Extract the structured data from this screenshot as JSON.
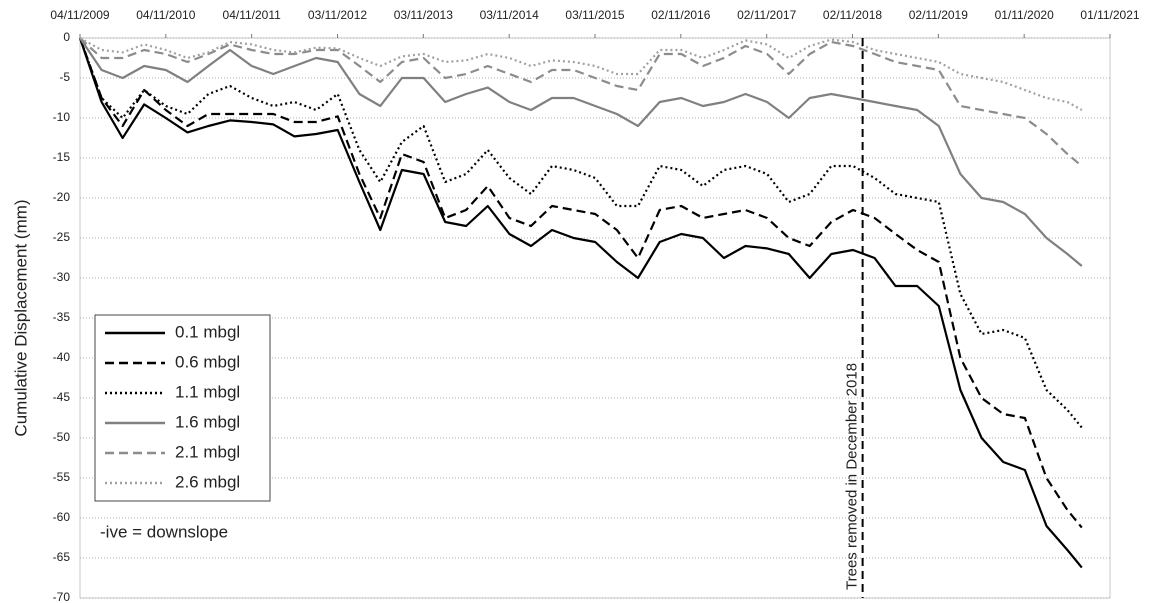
{
  "chart_data": {
    "type": "line",
    "y_label": "Cumulative Displacement (mm)",
    "x": [
      "2009-11-04",
      "2010-02-04",
      "2010-05-04",
      "2010-08-04",
      "2010-11-04",
      "2011-02-04",
      "2011-05-04",
      "2011-08-04",
      "2011-11-04",
      "2012-02-04",
      "2012-05-04",
      "2012-08-04",
      "2012-11-04",
      "2013-02-04",
      "2013-05-04",
      "2013-08-04",
      "2013-11-04",
      "2014-02-04",
      "2014-05-04",
      "2014-08-04",
      "2014-11-04",
      "2015-02-04",
      "2015-05-04",
      "2015-08-04",
      "2015-11-04",
      "2016-02-04",
      "2016-05-04",
      "2016-08-04",
      "2016-11-04",
      "2017-02-04",
      "2017-05-04",
      "2017-08-04",
      "2017-11-04",
      "2018-02-04",
      "2018-05-04",
      "2018-08-04",
      "2018-11-04",
      "2019-02-04",
      "2019-05-04",
      "2019-08-04",
      "2019-11-04",
      "2020-02-04",
      "2020-05-04",
      "2020-08-04",
      "2020-11-04",
      "2021-02-04",
      "2021-05-04",
      "2021-07-04"
    ],
    "series": [
      {
        "name": "0.1 mbgl",
        "color": "#000000",
        "dash": "solid",
        "values": [
          0,
          -8,
          -12.5,
          -8.3,
          -10,
          -11.8,
          -11,
          -10.3,
          -10.5,
          -10.8,
          -12.3,
          -12,
          -11.5,
          -18,
          -24,
          -16.5,
          -17,
          -23,
          -23.5,
          -21,
          -24.5,
          -26,
          -24,
          -25,
          -25.5,
          -28,
          -30,
          -25.5,
          -24.5,
          -25,
          -27.5,
          -26,
          -26.3,
          -27,
          -30,
          -27,
          -26.5,
          -27.5,
          -31,
          -31,
          -33.5,
          -44,
          -50,
          -53,
          -54,
          -61,
          -64,
          -66.2
        ]
      },
      {
        "name": "0.6 mbgl",
        "color": "#000000",
        "dash": "dashed",
        "values": [
          0,
          -7.5,
          -11,
          -6.5,
          -9,
          -11,
          -9.5,
          -9.5,
          -9.5,
          -9.5,
          -10.5,
          -10.5,
          -9.8,
          -17,
          -22.5,
          -14.5,
          -15.5,
          -22.5,
          -21.5,
          -18.5,
          -22.5,
          -23.5,
          -21,
          -21.5,
          -22,
          -24,
          -27.5,
          -21.5,
          -21,
          -22.5,
          -22,
          -21.5,
          -22.5,
          -25,
          -26,
          -23,
          -21.5,
          -22.5,
          -24.5,
          -26.5,
          -28,
          -40,
          -45,
          -47,
          -47.5,
          -55,
          -59,
          -61.2
        ]
      },
      {
        "name": "1.1 mbgl",
        "color": "#000000",
        "dash": "dotted",
        "values": [
          0,
          -7.5,
          -10,
          -6.5,
          -8.5,
          -9.5,
          -7,
          -6,
          -7.5,
          -8.5,
          -8,
          -9,
          -7,
          -14,
          -18,
          -13,
          -11,
          -18,
          -17,
          -14,
          -17.5,
          -19.5,
          -16,
          -16.5,
          -17.5,
          -21,
          -21,
          -16,
          -16.5,
          -18.5,
          -16.5,
          -16,
          -17,
          -20.5,
          -19.5,
          -16,
          -16,
          -17.5,
          -19.5,
          -20,
          -20.5,
          -32,
          -37,
          -36.5,
          -37.5,
          -44,
          -46.5,
          -48.7
        ]
      },
      {
        "name": "1.6 mbgl",
        "color": "#808080",
        "dash": "solid",
        "values": [
          0,
          -4,
          -5,
          -3.5,
          -4,
          -5.5,
          -3.5,
          -1.5,
          -3.5,
          -4.5,
          -3.5,
          -2.5,
          -3,
          -7,
          -8.5,
          -5,
          -5,
          -8,
          -7,
          -6.2,
          -8,
          -9,
          -7.5,
          -7.5,
          -8.5,
          -9.5,
          -11,
          -8,
          -7.5,
          -8.5,
          -8,
          -7,
          -8,
          -10,
          -7.5,
          -7,
          -7.5,
          -8,
          -8.5,
          -9,
          -11,
          -17,
          -20,
          -20.5,
          -22,
          -25,
          -27,
          -28.5
        ]
      },
      {
        "name": "2.1 mbgl",
        "color": "#8c8c8c",
        "dash": "dashed",
        "values": [
          0,
          -2.5,
          -2.5,
          -1.5,
          -2,
          -3,
          -2,
          -0.8,
          -1.5,
          -2,
          -2,
          -1.5,
          -1.5,
          -3.5,
          -5.5,
          -3,
          -2.5,
          -5,
          -4.5,
          -3.5,
          -4.5,
          -5.5,
          -4,
          -4,
          -5,
          -6,
          -6.5,
          -2,
          -2,
          -3.5,
          -2.5,
          -1,
          -2,
          -4.5,
          -2,
          -0.5,
          -1,
          -2,
          -3,
          -3.5,
          -4,
          -8.5,
          -9,
          -9.5,
          -10,
          -12,
          -14.5,
          -16
        ]
      },
      {
        "name": "2.6 mbgl",
        "color": "#a0a0a0",
        "dash": "dotted",
        "values": [
          0,
          -1.5,
          -1.8,
          -0.8,
          -1.5,
          -2.5,
          -1.8,
          -0.5,
          -0.8,
          -1.5,
          -1.8,
          -1.2,
          -1.3,
          -2.5,
          -3.5,
          -2.3,
          -2,
          -3,
          -2.8,
          -2,
          -2.5,
          -3.5,
          -2.8,
          -3,
          -3.5,
          -4.5,
          -4.5,
          -1.5,
          -1.5,
          -2.5,
          -1.5,
          -0.3,
          -0.8,
          -2.5,
          -1,
          -0.2,
          -0.5,
          -1.5,
          -2,
          -2.5,
          -3,
          -4.5,
          -5,
          -5.5,
          -6.5,
          -7.5,
          -8,
          -9
        ]
      }
    ],
    "xlim": [
      "2009-11-04",
      "2021-11-01"
    ],
    "xticks": [
      {
        "value": "2009-11-04",
        "label": "04/11/2009"
      },
      {
        "value": "2010-11-04",
        "label": "04/11/2010"
      },
      {
        "value": "2011-11-04",
        "label": "04/11/2011"
      },
      {
        "value": "2012-11-03",
        "label": "03/11/2012"
      },
      {
        "value": "2013-11-03",
        "label": "03/11/2013"
      },
      {
        "value": "2014-11-03",
        "label": "03/11/2014"
      },
      {
        "value": "2015-11-03",
        "label": "03/11/2015"
      },
      {
        "value": "2016-11-02",
        "label": "02/11/2016"
      },
      {
        "value": "2017-11-02",
        "label": "02/11/2017"
      },
      {
        "value": "2018-11-02",
        "label": "02/11/2018"
      },
      {
        "value": "2019-11-02",
        "label": "02/11/2019"
      },
      {
        "value": "2020-11-01",
        "label": "01/11/2020"
      },
      {
        "value": "2021-11-01",
        "label": "01/11/2021"
      }
    ],
    "ylim": [
      -70,
      0
    ],
    "yticks": [
      0,
      -5,
      -10,
      -15,
      -20,
      -25,
      -30,
      -35,
      -40,
      -45,
      -50,
      -55,
      -60,
      -65,
      -70
    ],
    "grid": true,
    "legend": "bottom-left",
    "legend_note": "-ive = downslope",
    "annotation": {
      "text": "Trees removed in December 2018",
      "x": "2018-12-15"
    }
  }
}
